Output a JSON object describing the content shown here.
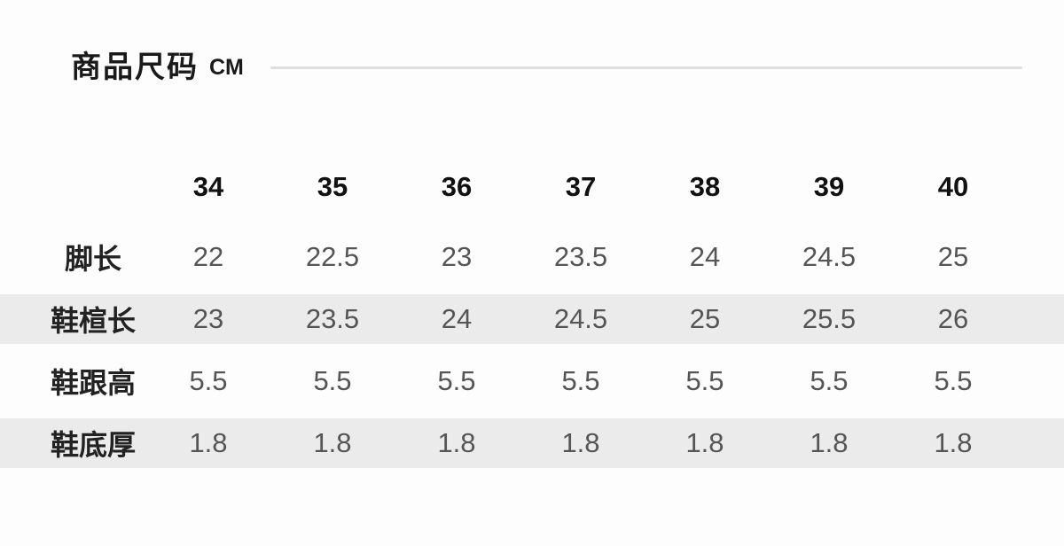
{
  "page": {
    "background": "#fdfdfd"
  },
  "header": {
    "title": "商品尺码",
    "unit": "CM"
  },
  "size_chart": {
    "columns": [
      "34",
      "35",
      "36",
      "37",
      "38",
      "39",
      "40"
    ],
    "rows": [
      {
        "label": "脚长",
        "striped": false,
        "values": [
          "22",
          "22.5",
          "23",
          "23.5",
          "24",
          "24.5",
          "25"
        ]
      },
      {
        "label": "鞋楦长",
        "striped": true,
        "values": [
          "23",
          "23.5",
          "24",
          "24.5",
          "25",
          "25.5",
          "26"
        ]
      },
      {
        "label": "鞋跟高",
        "striped": false,
        "values": [
          "5.5",
          "5.5",
          "5.5",
          "5.5",
          "5.5",
          "5.5",
          "5.5"
        ]
      },
      {
        "label": "鞋底厚",
        "striped": true,
        "values": [
          "1.8",
          "1.8",
          "1.8",
          "1.8",
          "1.8",
          "1.8",
          "1.8"
        ]
      }
    ],
    "colors": {
      "stripe": "#ebebeb",
      "header_text": "#111111",
      "label_text": "#222222",
      "value_text": "#555555",
      "divider": "#dedede"
    }
  }
}
